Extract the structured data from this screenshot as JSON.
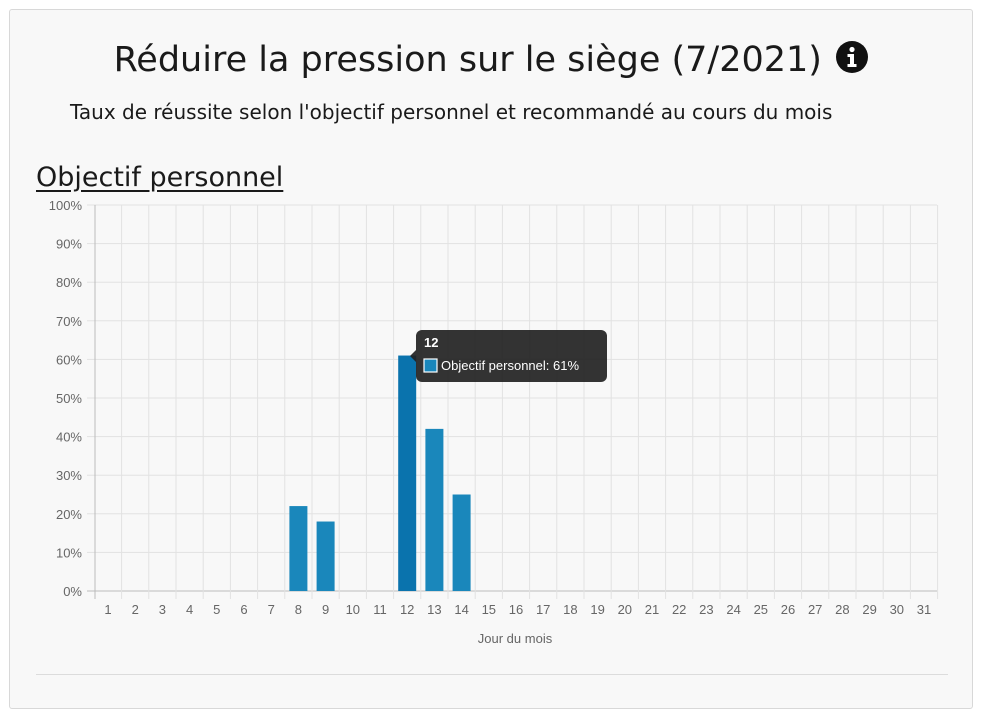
{
  "header": {
    "title": "Réduire la pression sur le siège (7/2021)",
    "info_icon": "info-circle-icon",
    "subtitle": "Taux de réussite selon l'objectif personnel et recommandé au cours du mois"
  },
  "section": {
    "heading": "Objectif personnel"
  },
  "chart_data": {
    "type": "bar",
    "xlabel": "Jour du mois",
    "ylabel": "",
    "ylim": [
      0,
      100
    ],
    "y_ticks": [
      0,
      10,
      20,
      30,
      40,
      50,
      60,
      70,
      80,
      90,
      100
    ],
    "y_tick_suffix": "%",
    "categories": [
      "1",
      "2",
      "3",
      "4",
      "5",
      "6",
      "7",
      "8",
      "9",
      "10",
      "11",
      "12",
      "13",
      "14",
      "15",
      "16",
      "17",
      "18",
      "19",
      "20",
      "21",
      "22",
      "23",
      "24",
      "25",
      "26",
      "27",
      "28",
      "29",
      "30",
      "31"
    ],
    "series": [
      {
        "name": "Objectif personnel",
        "color": "#1a87bb",
        "highlight_color": "#0a73ad",
        "values": [
          0,
          0,
          0,
          0,
          0,
          0,
          0,
          22,
          18,
          0,
          0,
          61,
          42,
          25,
          0,
          0,
          0,
          0,
          0,
          0,
          0,
          0,
          0,
          0,
          0,
          0,
          0,
          0,
          0,
          0,
          0
        ]
      }
    ],
    "grid": true,
    "tooltip": {
      "title": "12",
      "label": "Objectif personnel: 61%"
    }
  }
}
